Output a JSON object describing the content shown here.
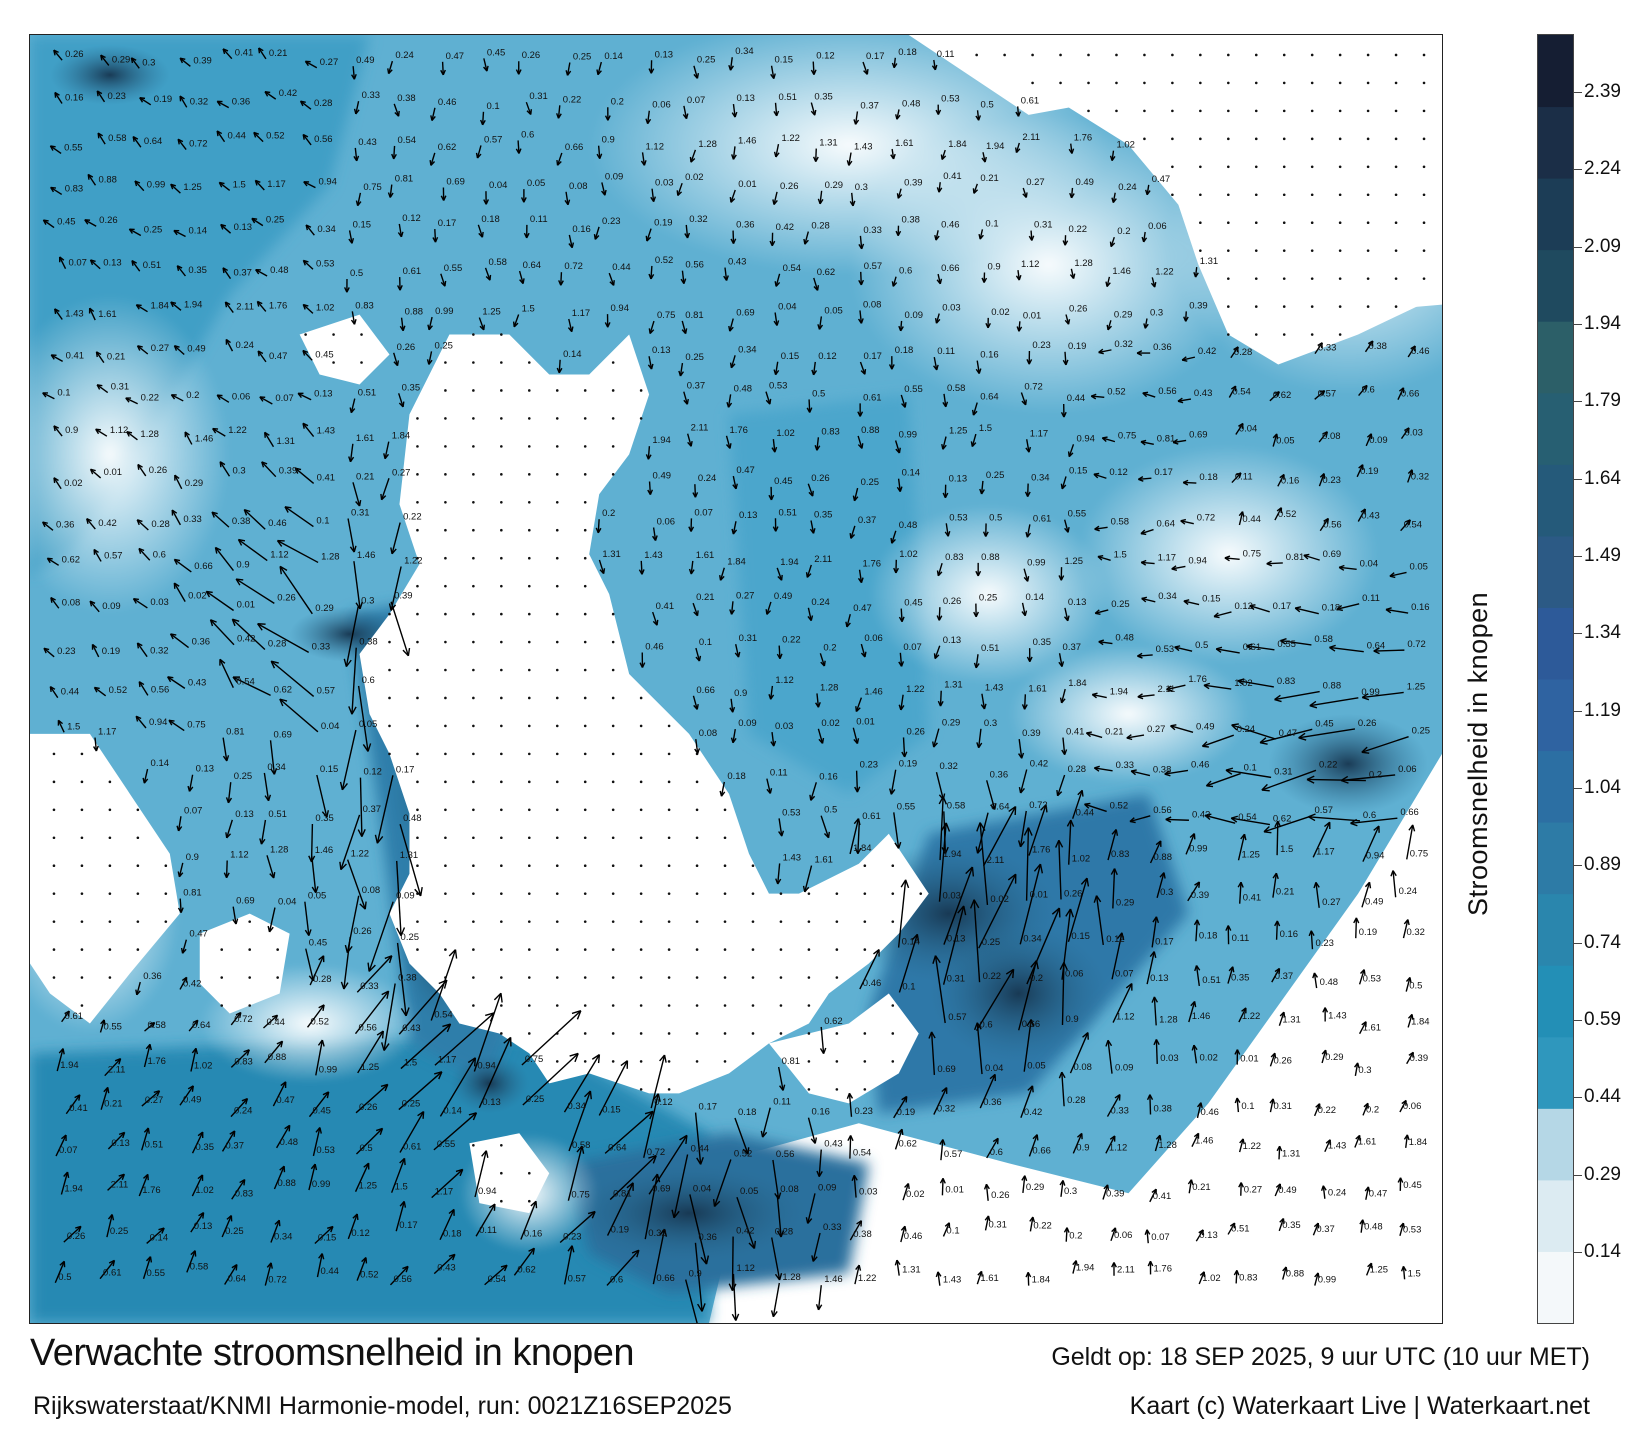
{
  "map": {
    "title": "Verwachte stroomsnelheid in knopen",
    "subtitle": "Rijkswaterstaat/KNMI Harmonie-model, run: 0021Z16SEP2025",
    "valid": "Geldt op: 18 SEP 2025, 9 uur UTC (10 uur MET)",
    "credit": "Kaart (c) Waterkaart Live | Waterkaart.net",
    "colors": {
      "land": "#ffffff",
      "frame": "#222222",
      "arrow": "#000000"
    }
  },
  "colorbar": {
    "label": "Stroomsnelheid in knopen",
    "ticks": [
      "0.14",
      "0.29",
      "0.44",
      "0.59",
      "0.74",
      "0.89",
      "1.04",
      "1.19",
      "1.34",
      "1.49",
      "1.64",
      "1.79",
      "1.94",
      "2.09",
      "2.24",
      "2.39"
    ],
    "colors": [
      "#f4f8fa",
      "#dcebf2",
      "#b5d7e6",
      "#2f97bd",
      "#238fb6",
      "#2a86ad",
      "#2d7ba6",
      "#2c6fa3",
      "#2f63a1",
      "#2d5a99",
      "#2c5a85",
      "#255a7a",
      "#275f72",
      "#2c5f68",
      "#1f4a5f",
      "#1c3d56",
      "#1b2e47",
      "#151e33"
    ]
  },
  "speed_labels": [
    "0.26",
    "0.29",
    "0.3",
    "0.39",
    "0.41",
    "0.21",
    "0.27",
    "0.49",
    "0.24",
    "0.47",
    "0.45",
    "0.26",
    "0.25",
    "0.14",
    "0.13",
    "0.25",
    "0.34",
    "0.15",
    "0.12",
    "0.17",
    "0.18",
    "0.11",
    "0.16",
    "0.23",
    "0.19",
    "0.32",
    "0.36",
    "0.42",
    "0.28",
    "0.33",
    "0.38",
    "0.46",
    "0.1",
    "0.31",
    "0.22",
    "0.2",
    "0.06",
    "0.07",
    "0.13",
    "0.51",
    "0.35",
    "0.37",
    "0.48",
    "0.53",
    "0.5",
    "0.61",
    "0.55",
    "0.58",
    "0.64",
    "0.72",
    "0.44",
    "0.52",
    "0.56",
    "0.43",
    "0.54",
    "0.62",
    "0.57",
    "0.6",
    "0.66",
    "0.9",
    "1.12",
    "1.28",
    "1.46",
    "1.22",
    "1.31",
    "1.43",
    "1.61",
    "1.84",
    "1.94",
    "2.11",
    "1.76",
    "1.02",
    "0.83",
    "0.88",
    "0.99",
    "1.25",
    "1.5",
    "1.17",
    "0.94",
    "0.75",
    "0.81",
    "0.69",
    "0.04",
    "0.05",
    "0.08",
    "0.09",
    "0.03",
    "0.02",
    "0.01"
  ]
}
